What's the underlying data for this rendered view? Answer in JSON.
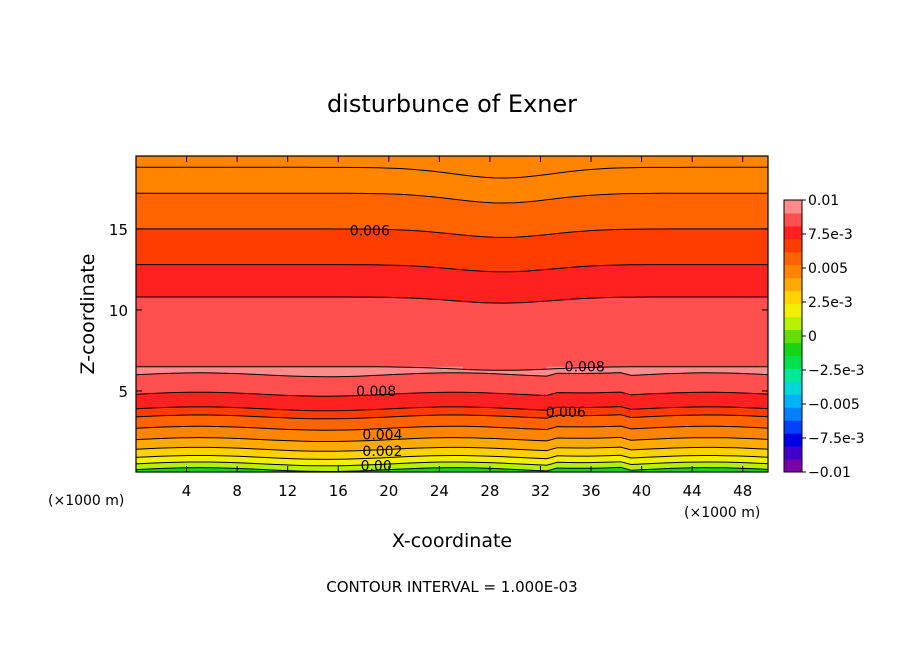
{
  "chart_data": {
    "type": "heatmap",
    "title": "disturbunce of Exner",
    "xlabel": "X-coordinate",
    "ylabel": "Z-coordinate",
    "x_unit_label_left": "(×1000 m)",
    "x_unit_label_right": "(×1000 m)",
    "xlim": [
      0,
      50
    ],
    "ylim": [
      0,
      19.5
    ],
    "x_ticks": [
      4,
      8,
      12,
      16,
      20,
      24,
      28,
      32,
      36,
      40,
      44,
      48
    ],
    "x_tick_labels": [
      "4",
      "8",
      "12",
      "16",
      "20",
      "24",
      "28",
      "32",
      "36",
      "40",
      "44",
      "48"
    ],
    "y_ticks": [
      5,
      10,
      15
    ],
    "y_tick_labels": [
      "5",
      "10",
      "15"
    ],
    "footer": "CONTOUR INTERVAL = 1.000E-03",
    "contour_interval": 0.001,
    "colorbar": {
      "min": -0.01,
      "max": 0.01,
      "tick_values": [
        0.01,
        0.0075,
        0.005,
        0.0025,
        0,
        -0.0025,
        -0.005,
        -0.0075,
        -0.01
      ],
      "tick_labels": [
        "0.01",
        "7.5e-3",
        "0.005",
        "2.5e-3",
        "0",
        "−2.5e-3",
        "−0.005",
        "−7.5e-3",
        "−0.01"
      ],
      "colors": [
        "#7a00a8",
        "#3f00c8",
        "#0000e6",
        "#0040ff",
        "#0080ff",
        "#00b4ff",
        "#00d8d8",
        "#00e89a",
        "#00e050",
        "#14d414",
        "#60e000",
        "#b8f000",
        "#f0f000",
        "#ffd200",
        "#ffaa00",
        "#ff8400",
        "#ff6400",
        "#ff3c00",
        "#ff2020",
        "#ff5050",
        "#ff8c8c"
      ]
    },
    "contour_labels": [
      {
        "text": "0.006",
        "x": 18.5,
        "y": 14.9
      },
      {
        "text": "0.008",
        "x": 19.0,
        "y": 5.0
      },
      {
        "text": "0.008",
        "x": 35.5,
        "y": 6.5
      },
      {
        "text": "0.006",
        "x": 34.0,
        "y": 3.7
      },
      {
        "text": "0.004",
        "x": 19.5,
        "y": 2.3
      },
      {
        "text": "0.002",
        "x": 19.5,
        "y": 1.3
      },
      {
        "text": "0.00",
        "x": 19.0,
        "y": 0.4
      }
    ]
  }
}
